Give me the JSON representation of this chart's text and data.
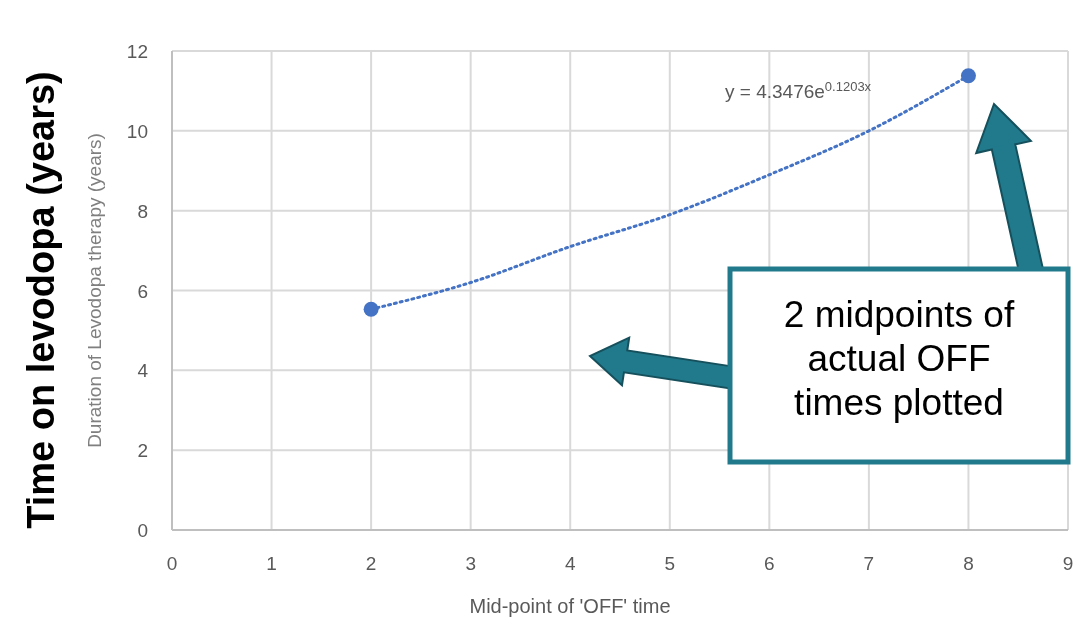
{
  "chart_data": {
    "type": "scatter",
    "xlabel": "Mid-point of 'OFF' time",
    "ylabel": "Duration of Levodopa therapy (years)",
    "xlim": [
      0,
      9
    ],
    "xticks": [
      0,
      1,
      2,
      3,
      4,
      5,
      6,
      7,
      8,
      9
    ],
    "ylim": [
      0,
      12
    ],
    "yticks": [
      0,
      2,
      4,
      6,
      8,
      10,
      12
    ],
    "grid": true,
    "marker": "circle",
    "series": [
      {
        "color": "#4472c4",
        "x": [
          2,
          8
        ],
        "values": [
          5.53,
          11.38
        ]
      },
      {
        "type": "line",
        "color": "#4472c4",
        "line_style": "dotted",
        "marker": "none",
        "x": [
          2,
          3,
          4,
          5,
          6,
          7,
          8
        ],
        "values": [
          5.53,
          6.2,
          7.1,
          7.9,
          8.9,
          10.0,
          11.38
        ]
      }
    ],
    "annotations": [
      "Time on levodopa (years)",
      "y = 4.3476e$^{0.1203x}$",
      "2 midpoints of actual OFF times plotted"
    ]
  }
}
